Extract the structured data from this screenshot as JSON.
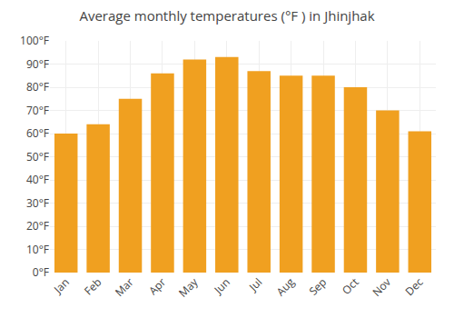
{
  "chart_data": {
    "type": "bar",
    "title": "Average monthly temperatures (°F ) in Jhinjhak",
    "categories": [
      "Jan",
      "Feb",
      "Mar",
      "Apr",
      "May",
      "Jun",
      "Jul",
      "Aug",
      "Sep",
      "Oct",
      "Nov",
      "Dec"
    ],
    "values": [
      60,
      64,
      75,
      86,
      92,
      93,
      87,
      85,
      85,
      80,
      70,
      61
    ],
    "color": "#F0A020",
    "ylim": [
      0,
      100
    ],
    "yticks": [
      {
        "value": 0,
        "label": "0°F"
      },
      {
        "value": 10,
        "label": "10°F"
      },
      {
        "value": 20,
        "label": "20°F"
      },
      {
        "value": 30,
        "label": "30°F"
      },
      {
        "value": 40,
        "label": "40°F"
      },
      {
        "value": 50,
        "label": "50°F"
      },
      {
        "value": 60,
        "label": "60°F"
      },
      {
        "value": 70,
        "label": "70°F"
      },
      {
        "value": 80,
        "label": "80°F"
      },
      {
        "value": 90,
        "label": "90°F"
      },
      {
        "value": 100,
        "label": "100°F"
      }
    ],
    "grid": true
  }
}
